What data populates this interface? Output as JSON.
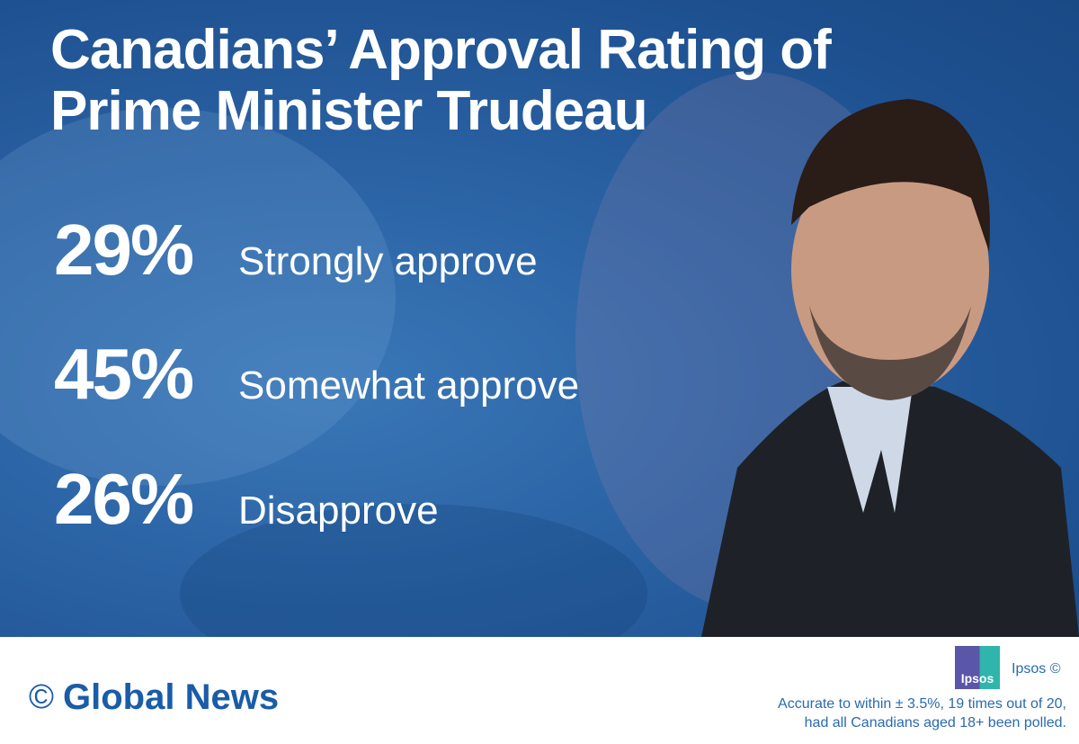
{
  "title": [
    "Canadians’ Approval Rating of",
    "Prime Minister Trudeau"
  ],
  "stats": [
    {
      "percent": "29%",
      "label": "Strongly approve",
      "value": 29
    },
    {
      "percent": "45%",
      "label": "Somewhat approve",
      "value": 45
    },
    {
      "percent": "26%",
      "label": "Disapprove",
      "value": 26
    }
  ],
  "footer": {
    "copyright_symbol": "©",
    "brand": "Global News",
    "ipsos_logo": "Ipsos",
    "ipsos_credit": "Ipsos ©",
    "note": [
      "Accurate to within ± 3.5%, 19 times out of 20,",
      "had all Canadians aged 18+ been polled."
    ]
  },
  "colors": {
    "background": "#2a62a4",
    "brand": "#1a5ca8",
    "text": "#ffffff"
  }
}
